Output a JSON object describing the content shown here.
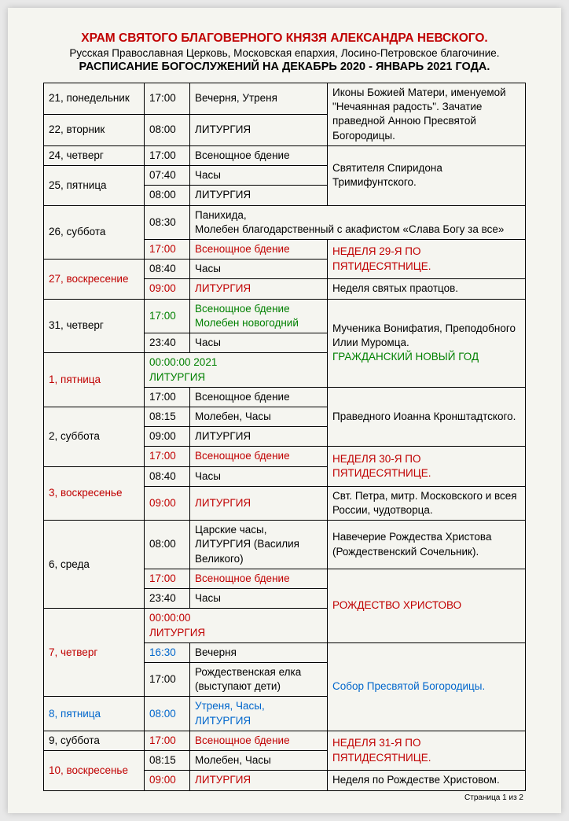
{
  "header": {
    "line1": "ХРАМ СВЯТОГО БЛАГОВЕРНОГО КНЯЗЯ АЛЕКСАНДРА НЕВСКОГО.",
    "line2": "Русская Православная Церковь, Московская епархия, Лосино-Петровское благочиние.",
    "line3": "РАСПИСАНИЕ БОГОСЛУЖЕНИЙ НА ДЕКАБРЬ 2020 - ЯНВАРЬ 2021 ГОДА."
  },
  "rows": {
    "r1_date": "21, понедельник",
    "r1_time": "17:00",
    "r1_serv": "Вечерня, Утреня",
    "r1_note": "Иконы Божией Матери, именуемой \"Нечаянная радость\". Зачатие праведной Анною Пресвятой Богородицы.",
    "r2_date": "22, вторник",
    "r2_time": "08:00",
    "r2_serv": "ЛИТУРГИЯ",
    "r3_date": "24, четверг",
    "r3_time": "17:00",
    "r3_serv": "Всенощное бдение",
    "r3_note": "Святителя Спиридона Тримифунтского.",
    "r4_date": "25, пятница",
    "r4a_time": "07:40",
    "r4a_serv": "Часы",
    "r4b_time": "08:00",
    "r4b_serv": "ЛИТУРГИЯ",
    "r5_date": "26, суббота",
    "r5a_time": "08:30",
    "r5a_serv": "Панихида,\nМолебен благодарственный с акафистом «Слава Богу за все»",
    "r5b_time": "17:00",
    "r5b_serv": "Всенощное бдение",
    "r5b_note": "НЕДЕЛЯ 29-Я ПО ПЯТИДЕСЯТНИЦЕ.",
    "r6_date": "27, воскресение",
    "r6a_time": "08:40",
    "r6a_serv": "Часы",
    "r6b_time": "09:00",
    "r6b_serv": "ЛИТУРГИЯ",
    "r6_note": "Неделя святых праотцов.",
    "r7_date": "31, четверг",
    "r7a_time": "17:00",
    "r7a_serv": "Всенощное бдение\nМолебен новогодний",
    "r7b_time": "23:40",
    "r7b_serv": "Часы",
    "r7_note1": "Мученика Вонифатия, Преподобного Илии Муромца.",
    "r7_note2": "ГРАЖДАНСКИЙ НОВЫЙ ГОД",
    "r8_date": "1, пятница",
    "r8a_serv": "00:00:00 2021\nЛИТУРГИЯ",
    "r8b_time": "17:00",
    "r8b_serv": "Всенощное бдение",
    "r8_note": "Праведного Иоанна Кронштадтского.",
    "r9_date": "2, суббота",
    "r9a_time": "08:15",
    "r9a_serv": "Молебен, Часы",
    "r9b_time": "09:00",
    "r9b_serv": "ЛИТУРГИЯ",
    "r9c_time": "17:00",
    "r9c_serv": "Всенощное бдение",
    "r9c_note": "НЕДЕЛЯ 30-Я ПО ПЯТИДЕСЯТНИЦЕ.",
    "r10_date": "3, воскресенье",
    "r10a_time": "08:40",
    "r10a_serv": "Часы",
    "r10b_time": "09:00",
    "r10b_serv": "ЛИТУРГИЯ",
    "r10_note": "Свт. Петра, митр. Московского и всея России, чудотворца.",
    "r11_date": "6, среда",
    "r11a_time": "08:00",
    "r11a_serv": "Царские часы, ЛИТУРГИЯ (Василия Великого)",
    "r11_note": "Навечерие Рождества Христова (Рождественский Сочельник).",
    "r11b_time": "17:00",
    "r11b_serv": "Всенощное бдение",
    "r11c_time": "23:40",
    "r11c_serv": "Часы",
    "r11_note2": "РОЖДЕСТВО ХРИСТОВО",
    "r12_date": "7, четверг",
    "r12a_serv": "00:00:00\nЛИТУРГИЯ",
    "r12b_time": "16:30",
    "r12b_serv": "Вечерня",
    "r12c_time": "17:00",
    "r12c_serv": "Рождественская елка (выступают дети)",
    "r12_note": "Собор Пресвятой Богородицы.",
    "r13_date": "8, пятница",
    "r13_time": "08:00",
    "r13_serv": "Утреня, Часы, ЛИТУРГИЯ",
    "r14_date": "9, суббота",
    "r14_time": "17:00",
    "r14_serv": "Всенощное бдение",
    "r14_note": "НЕДЕЛЯ 31-Я ПО ПЯТИДЕСЯТНИЦЕ.",
    "r15_date": "10, воскресенье",
    "r15a_time": "08:15",
    "r15a_serv": "Молебен, Часы",
    "r15b_time": "09:00",
    "r15b_serv": "ЛИТУРГИЯ",
    "r15_note": "Неделя по Рождестве Христовом."
  },
  "footer": "Страница 1 из 2"
}
